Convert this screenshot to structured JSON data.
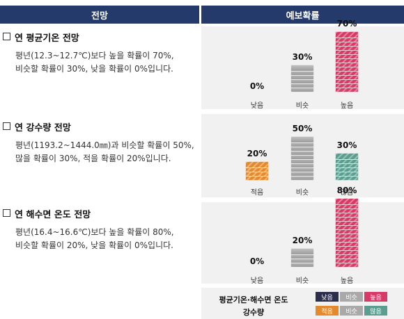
{
  "header": {
    "left": "전망",
    "right": "예보확률"
  },
  "sections": [
    {
      "title": "연 평균기온 전망",
      "desc1": "평년(12.3~12.7℃)보다 높을 확률이 70%,",
      "desc2": "비슷할 확률이 30%, 낮을 확률이 0%입니다.",
      "bars": [
        {
          "label": "낮음",
          "value": 0,
          "pct": "0%",
          "color": "gray"
        },
        {
          "label": "비슷",
          "value": 30,
          "pct": "30%",
          "color": "gray"
        },
        {
          "label": "높음",
          "value": 70,
          "pct": "70%",
          "color": "pink"
        }
      ]
    },
    {
      "title": "연 강수량 전망",
      "desc1": "평년(1193.2~1444.0㎜)과 비슷할 확률이 50%,",
      "desc2": "많을 확률이 30%, 적을 확률이 20%입니다.",
      "bars": [
        {
          "label": "적음",
          "value": 20,
          "pct": "20%",
          "color": "orange"
        },
        {
          "label": "비슷",
          "value": 50,
          "pct": "50%",
          "color": "gray"
        },
        {
          "label": "많음",
          "value": 30,
          "pct": "30%",
          "color": "teal"
        }
      ]
    },
    {
      "title": "연 해수면 온도 전망",
      "desc1": "평년(16.4~16.6℃)보다 높을 확률이 80%,",
      "desc2": "비슷할 확률이 20%, 낮을 확률이 0%입니다.",
      "bars": [
        {
          "label": "낮음",
          "value": 0,
          "pct": "0%",
          "color": "gray"
        },
        {
          "label": "비슷",
          "value": 20,
          "pct": "20%",
          "color": "gray"
        },
        {
          "label": "높음",
          "value": 80,
          "pct": "80%",
          "color": "pink"
        }
      ]
    }
  ],
  "legend": {
    "row1": {
      "title": "평균기온·해수면 온도",
      "chips": [
        "낮음",
        "비슷",
        "높음"
      ]
    },
    "row2": {
      "title": "강수량",
      "chips": [
        "적음",
        "비슷",
        "많음"
      ]
    }
  },
  "colors": {
    "header": "#243a6b",
    "gray": "#a9a9a9",
    "pink": "#d83a67",
    "orange": "#e58a2c",
    "teal": "#5b9e90",
    "navy": "#2d2d4d"
  }
}
